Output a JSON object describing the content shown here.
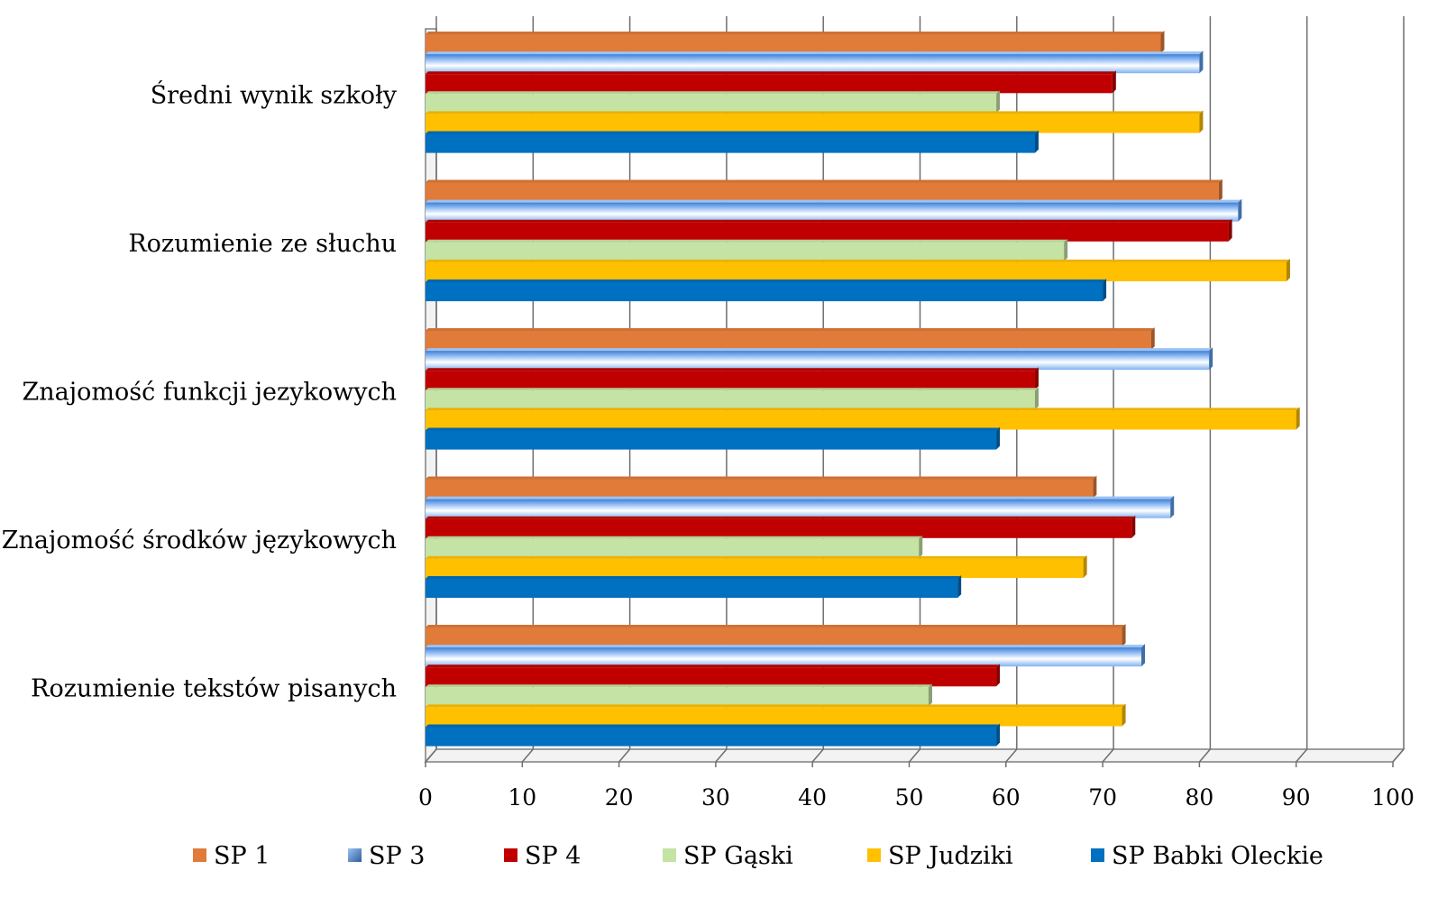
{
  "chart_data": {
    "type": "bar",
    "orientation": "horizontal",
    "categories": [
      "Średni wynik szkoły",
      "Rozumienie ze słuchu",
      "Znajomość funkcji jezykowych",
      "Znajomość środków językowych",
      "Rozumienie tekstów pisanych"
    ],
    "series": [
      {
        "name": "SP 1",
        "color": "#E07B39",
        "values": [
          76,
          82,
          75,
          69,
          72
        ]
      },
      {
        "name": "SP 3",
        "color": "#6FA8F0",
        "values": [
          80,
          84,
          81,
          77,
          74
        ]
      },
      {
        "name": "SP 4",
        "color": "#C00000",
        "values": [
          71,
          83,
          63,
          73,
          59
        ]
      },
      {
        "name": "SP Gąski",
        "color": "#C5E3A4",
        "values": [
          59,
          66,
          63,
          51,
          52
        ]
      },
      {
        "name": "SP Judziki",
        "color": "#FFC000",
        "values": [
          80,
          89,
          90,
          68,
          72
        ]
      },
      {
        "name": "SP Babki Oleckie",
        "color": "#0070C0",
        "values": [
          63,
          70,
          59,
          55,
          59
        ]
      }
    ],
    "xlim": [
      0,
      100
    ],
    "ticks": [
      "0",
      "10",
      "20",
      "30",
      "40",
      "50",
      "60",
      "70",
      "80",
      "90",
      "100"
    ],
    "grid": true,
    "legend_position": "bottom",
    "title": "",
    "xlabel": "",
    "ylabel": ""
  }
}
